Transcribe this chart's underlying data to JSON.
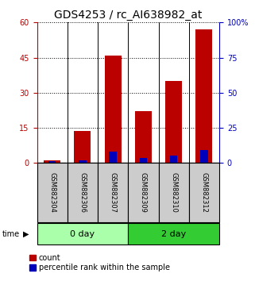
{
  "title": "GDS4253 / rc_AI638982_at",
  "samples": [
    "GSM882304",
    "GSM882306",
    "GSM882307",
    "GSM882309",
    "GSM882310",
    "GSM882312"
  ],
  "count_values": [
    1.2,
    13.5,
    46.0,
    22.0,
    35.0,
    57.0
  ],
  "percentile_values": [
    1.5,
    2.0,
    8.0,
    3.5,
    5.0,
    9.0
  ],
  "left_ylim": [
    0,
    60
  ],
  "left_yticks": [
    0,
    15,
    30,
    45,
    60
  ],
  "right_ylim": [
    0,
    100
  ],
  "right_yticks": [
    0,
    25,
    50,
    75,
    100
  ],
  "right_yticklabels": [
    "0",
    "25",
    "50",
    "75",
    "100%"
  ],
  "bar_color_red": "#bb0000",
  "bar_color_blue": "#0000bb",
  "group_labels": [
    "0 day",
    "2 day"
  ],
  "group_ranges": [
    [
      0,
      3
    ],
    [
      3,
      6
    ]
  ],
  "group_color_light": "#aaffaa",
  "group_color_dark": "#33cc33",
  "time_label": "time",
  "legend_items": [
    "count",
    "percentile rank within the sample"
  ],
  "bar_width": 0.55,
  "blue_bar_width": 0.25,
  "title_fontsize": 10,
  "tick_fontsize": 7,
  "sample_fontsize": 6,
  "group_fontsize": 8,
  "legend_fontsize": 7,
  "axis_bg": "#cccccc",
  "plot_bg": "#ffffff"
}
